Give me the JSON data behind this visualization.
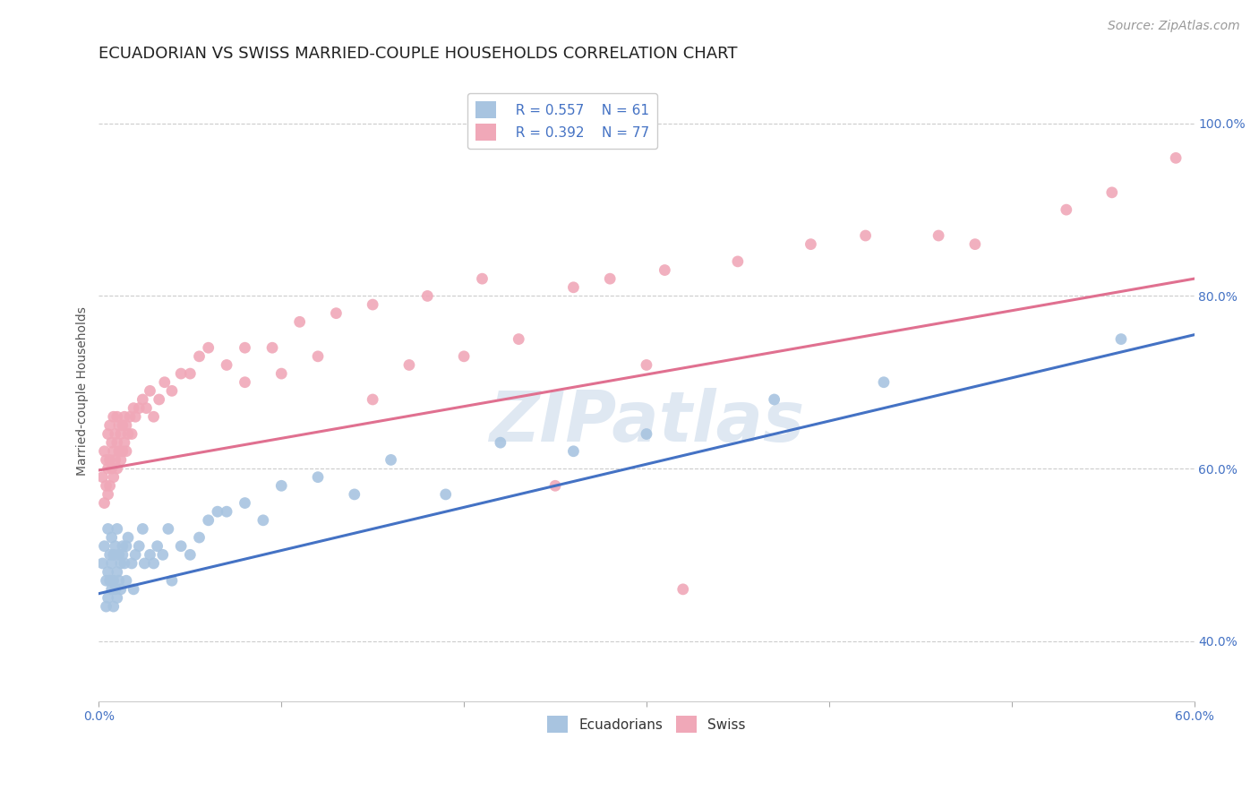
{
  "title": "ECUADORIAN VS SWISS MARRIED-COUPLE HOUSEHOLDS CORRELATION CHART",
  "source_text": "Source: ZipAtlas.com",
  "ylabel": "Married-couple Households",
  "xlim": [
    0.0,
    0.6
  ],
  "ylim": [
    0.33,
    1.05
  ],
  "xticks": [
    0.0,
    0.1,
    0.2,
    0.3,
    0.4,
    0.5,
    0.6
  ],
  "xticklabels": [
    "0.0%",
    "",
    "",
    "",
    "",
    "",
    "60.0%"
  ],
  "yticks": [
    0.4,
    0.6,
    0.8,
    1.0
  ],
  "yticklabels": [
    "40.0%",
    "60.0%",
    "80.0%",
    "100.0%"
  ],
  "ecuadorian_color": "#a8c4e0",
  "swiss_color": "#f0a8b8",
  "ecuadorian_line_color": "#4472c4",
  "swiss_line_color": "#e07090",
  "legend_r1": "R = 0.557",
  "legend_n1": "N = 61",
  "legend_r2": "R = 0.392",
  "legend_n2": "N = 77",
  "legend_label1": "Ecuadorians",
  "legend_label2": "Swiss",
  "watermark": "ZIPatlas",
  "background_color": "#ffffff",
  "ecu_line_x0": 0.0,
  "ecu_line_y0": 0.455,
  "ecu_line_x1": 0.6,
  "ecu_line_y1": 0.755,
  "swiss_line_x0": 0.0,
  "swiss_line_y0": 0.598,
  "swiss_line_x1": 0.6,
  "swiss_line_y1": 0.82,
  "ecuadorian_x": [
    0.002,
    0.003,
    0.004,
    0.004,
    0.005,
    0.005,
    0.005,
    0.006,
    0.006,
    0.007,
    0.007,
    0.007,
    0.008,
    0.008,
    0.008,
    0.009,
    0.009,
    0.01,
    0.01,
    0.01,
    0.011,
    0.011,
    0.012,
    0.012,
    0.013,
    0.013,
    0.014,
    0.015,
    0.015,
    0.016,
    0.018,
    0.019,
    0.02,
    0.022,
    0.024,
    0.025,
    0.028,
    0.03,
    0.032,
    0.035,
    0.038,
    0.04,
    0.045,
    0.05,
    0.055,
    0.06,
    0.065,
    0.07,
    0.08,
    0.09,
    0.1,
    0.12,
    0.14,
    0.16,
    0.19,
    0.22,
    0.26,
    0.3,
    0.37,
    0.43,
    0.56
  ],
  "ecuadorian_y": [
    0.49,
    0.51,
    0.44,
    0.47,
    0.45,
    0.48,
    0.53,
    0.47,
    0.5,
    0.46,
    0.49,
    0.52,
    0.44,
    0.47,
    0.5,
    0.46,
    0.51,
    0.45,
    0.48,
    0.53,
    0.47,
    0.5,
    0.46,
    0.49,
    0.5,
    0.51,
    0.49,
    0.47,
    0.51,
    0.52,
    0.49,
    0.46,
    0.5,
    0.51,
    0.53,
    0.49,
    0.5,
    0.49,
    0.51,
    0.5,
    0.53,
    0.47,
    0.51,
    0.5,
    0.52,
    0.54,
    0.55,
    0.55,
    0.56,
    0.54,
    0.58,
    0.59,
    0.57,
    0.61,
    0.57,
    0.63,
    0.62,
    0.64,
    0.68,
    0.7,
    0.75
  ],
  "swiss_x": [
    0.002,
    0.003,
    0.003,
    0.004,
    0.004,
    0.005,
    0.005,
    0.005,
    0.006,
    0.006,
    0.006,
    0.007,
    0.007,
    0.008,
    0.008,
    0.008,
    0.009,
    0.009,
    0.01,
    0.01,
    0.01,
    0.011,
    0.011,
    0.012,
    0.012,
    0.013,
    0.013,
    0.014,
    0.014,
    0.015,
    0.015,
    0.016,
    0.017,
    0.018,
    0.019,
    0.02,
    0.022,
    0.024,
    0.026,
    0.028,
    0.03,
    0.033,
    0.036,
    0.04,
    0.045,
    0.05,
    0.055,
    0.06,
    0.07,
    0.08,
    0.095,
    0.11,
    0.13,
    0.15,
    0.18,
    0.21,
    0.26,
    0.31,
    0.39,
    0.46,
    0.53,
    0.555,
    0.59,
    0.3,
    0.2,
    0.15,
    0.1,
    0.08,
    0.12,
    0.17,
    0.23,
    0.28,
    0.35,
    0.42,
    0.48,
    0.32,
    0.25
  ],
  "swiss_y": [
    0.59,
    0.56,
    0.62,
    0.58,
    0.61,
    0.57,
    0.6,
    0.64,
    0.58,
    0.61,
    0.65,
    0.6,
    0.63,
    0.59,
    0.62,
    0.66,
    0.61,
    0.64,
    0.6,
    0.63,
    0.66,
    0.62,
    0.65,
    0.61,
    0.64,
    0.62,
    0.65,
    0.63,
    0.66,
    0.62,
    0.65,
    0.64,
    0.66,
    0.64,
    0.67,
    0.66,
    0.67,
    0.68,
    0.67,
    0.69,
    0.66,
    0.68,
    0.7,
    0.69,
    0.71,
    0.71,
    0.73,
    0.74,
    0.72,
    0.74,
    0.74,
    0.77,
    0.78,
    0.79,
    0.8,
    0.82,
    0.81,
    0.83,
    0.86,
    0.87,
    0.9,
    0.92,
    0.96,
    0.72,
    0.73,
    0.68,
    0.71,
    0.7,
    0.73,
    0.72,
    0.75,
    0.82,
    0.84,
    0.87,
    0.86,
    0.46,
    0.58
  ],
  "title_fontsize": 13,
  "axis_label_fontsize": 10,
  "tick_fontsize": 10,
  "legend_fontsize": 11,
  "source_fontsize": 10
}
